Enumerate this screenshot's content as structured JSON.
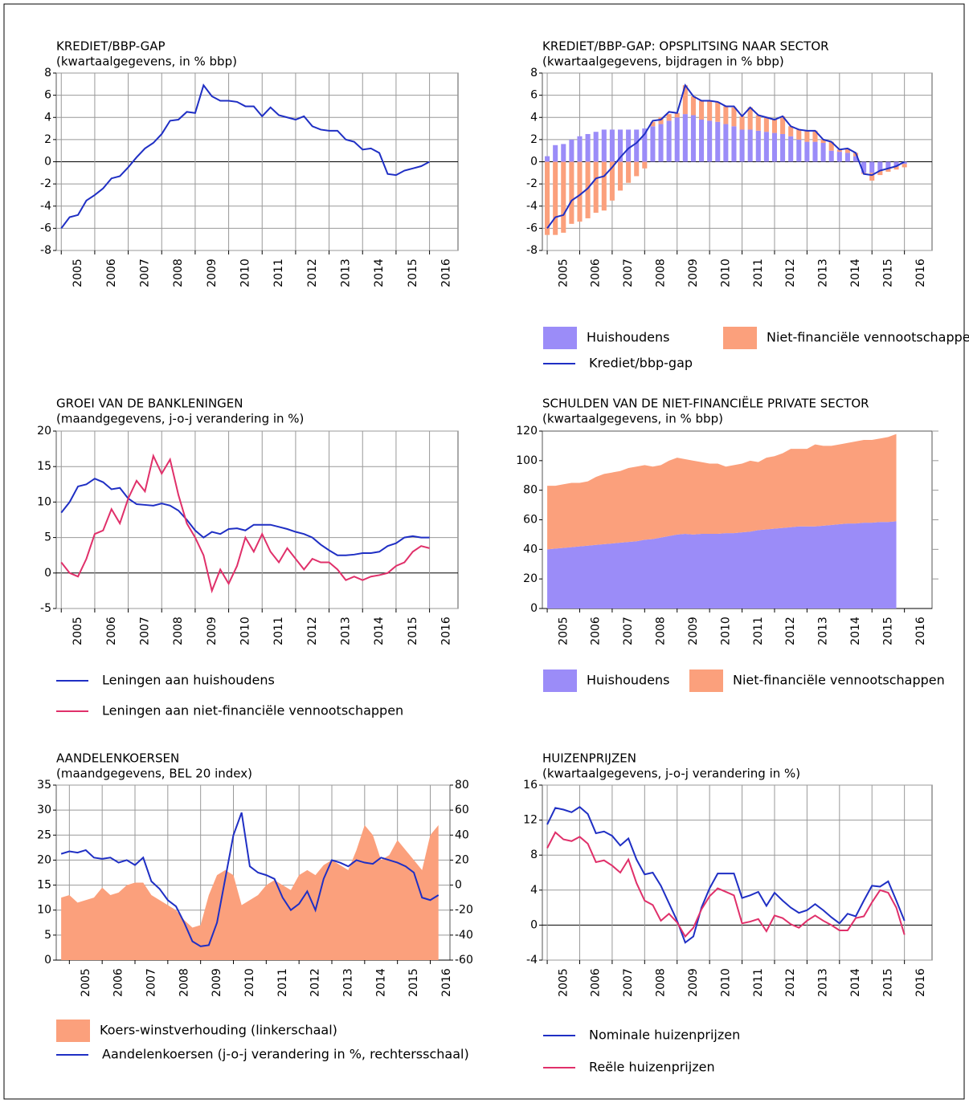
{
  "chart_data": [
    {
      "type": "line",
      "title": "KREDIET/BBP-GAP",
      "subtitle": "(kwartaalgegevens, in % bbp)",
      "grid": true,
      "color": "#1f2fc4",
      "xlim": [
        2004.85,
        2016.85
      ],
      "xticks": [
        2005,
        2006,
        2007,
        2008,
        2009,
        2010,
        2011,
        2012,
        2013,
        2014,
        2015,
        2016
      ],
      "ylim": [
        -8,
        8
      ],
      "yticks": [
        -8,
        -6,
        -4,
        -2,
        0,
        2,
        4,
        6,
        8
      ],
      "x": [
        2005,
        2005.25,
        2005.5,
        2005.75,
        2006,
        2006.25,
        2006.5,
        2006.75,
        2007,
        2007.25,
        2007.5,
        2007.75,
        2008,
        2008.25,
        2008.5,
        2008.75,
        2009,
        2009.25,
        2009.5,
        2009.75,
        2010,
        2010.25,
        2010.5,
        2010.75,
        2011,
        2011.25,
        2011.5,
        2011.75,
        2012,
        2012.25,
        2012.5,
        2012.75,
        2013,
        2013.25,
        2013.5,
        2013.75,
        2014,
        2014.25,
        2014.5,
        2014.75,
        2015,
        2015.25,
        2015.5,
        2015.75,
        2016
      ],
      "values": [
        -6,
        -5,
        -4.8,
        -3.5,
        -3,
        -2.4,
        -1.5,
        -1.3,
        -0.5,
        0.4,
        1.2,
        1.7,
        2.5,
        3.7,
        3.8,
        4.5,
        4.4,
        6.9,
        5.9,
        5.5,
        5.5,
        5.4,
        5,
        5,
        4.1,
        4.9,
        4.2,
        4,
        3.8,
        4.1,
        3.2,
        2.9,
        2.8,
        2.8,
        2,
        1.8,
        1.1,
        1.2,
        0.8,
        -1.1,
        -1.2,
        -0.8,
        -0.6,
        -0.4,
        0
      ]
    },
    {
      "type": "bar",
      "title": "KREDIET/BBP-GAP: OPSPLITSING NAAR SECTOR",
      "subtitle": "(kwartaalgegevens, bijdragen in % bbp)",
      "grid": true,
      "stacked": true,
      "xlim": [
        2004.85,
        2016.85
      ],
      "xticks": [
        2005,
        2006,
        2007,
        2008,
        2009,
        2010,
        2011,
        2012,
        2013,
        2014,
        2015,
        2016
      ],
      "ylim": [
        -8,
        8
      ],
      "yticks": [
        -8,
        -6,
        -4,
        -2,
        0,
        2,
        4,
        6,
        8
      ],
      "x": [
        2005,
        2005.25,
        2005.5,
        2005.75,
        2006,
        2006.25,
        2006.5,
        2006.75,
        2007,
        2007.25,
        2007.5,
        2007.75,
        2008,
        2008.25,
        2008.5,
        2008.75,
        2009,
        2009.25,
        2009.5,
        2009.75,
        2010,
        2010.25,
        2010.5,
        2010.75,
        2011,
        2011.25,
        2011.5,
        2011.75,
        2012,
        2012.25,
        2012.5,
        2012.75,
        2013,
        2013.25,
        2013.5,
        2013.75,
        2014,
        2014.25,
        2014.5,
        2014.75,
        2015,
        2015.25,
        2015.5,
        2015.75,
        2016
      ],
      "series": [
        {
          "name": "Huishoudens",
          "type": "bar",
          "color": "#9b8cf8",
          "values": [
            0.5,
            1.5,
            1.6,
            2,
            2.3,
            2.5,
            2.7,
            2.9,
            2.9,
            2.9,
            2.9,
            2.9,
            3,
            3.2,
            3.4,
            3.7,
            4,
            4.3,
            4.2,
            3.8,
            3.7,
            3.6,
            3.4,
            3.2,
            2.9,
            2.9,
            2.8,
            2.7,
            2.6,
            2.5,
            2.3,
            2,
            1.8,
            1.8,
            1.7,
            1,
            0.9,
            0.8,
            0.5,
            -1,
            -1,
            -0.8,
            -0.6,
            -0.4,
            -0.2
          ]
        },
        {
          "name": "Niet-financiële vennootschappen",
          "type": "bar",
          "color": "#fba07c",
          "values": [
            -6.6,
            -6.6,
            -6.4,
            -5.6,
            -5.4,
            -5.1,
            -4.6,
            -4.4,
            -3.5,
            -2.6,
            -1.9,
            -1.3,
            -0.6,
            0.4,
            0.6,
            0.6,
            0.4,
            2.6,
            1.7,
            1.7,
            1.8,
            1.8,
            1.6,
            1.7,
            1.2,
            2,
            1.4,
            1.3,
            1.2,
            1.6,
            0.9,
            0.9,
            1,
            1,
            0.3,
            0.8,
            0.2,
            0.4,
            0.3,
            -0.1,
            -0.7,
            -0.4,
            -0.3,
            -0.3,
            -0.3
          ]
        },
        {
          "name": "Krediet/bbp-gap",
          "type": "line",
          "color": "#1f2fc4",
          "values": [
            -6,
            -5,
            -4.8,
            -3.5,
            -3,
            -2.4,
            -1.5,
            -1.3,
            -0.5,
            0.4,
            1.2,
            1.7,
            2.5,
            3.7,
            3.8,
            4.5,
            4.4,
            6.9,
            5.9,
            5.5,
            5.5,
            5.4,
            5,
            5,
            4.1,
            4.9,
            4.2,
            4,
            3.8,
            4.1,
            3.2,
            2.9,
            2.8,
            2.8,
            2,
            1.8,
            1.1,
            1.2,
            0.8,
            -1.1,
            -1.2,
            -0.8,
            -0.6,
            -0.4,
            0
          ]
        }
      ]
    },
    {
      "type": "line",
      "title": "GROEI VAN DE BANKLENINGEN",
      "subtitle": "(maandgegevens, j-o-j verandering in %)",
      "grid": true,
      "xlim": [
        2004.85,
        2016.85
      ],
      "xticks": [
        2005,
        2006,
        2007,
        2008,
        2009,
        2010,
        2011,
        2012,
        2013,
        2014,
        2015,
        2016
      ],
      "ylim": [
        -5,
        20
      ],
      "yticks": [
        -5,
        0,
        5,
        10,
        15,
        20
      ],
      "x": [
        2005,
        2005.25,
        2005.5,
        2005.75,
        2006,
        2006.25,
        2006.5,
        2006.75,
        2007,
        2007.25,
        2007.5,
        2007.75,
        2008,
        2008.25,
        2008.5,
        2008.75,
        2009,
        2009.25,
        2009.5,
        2009.75,
        2010,
        2010.25,
        2010.5,
        2010.75,
        2011,
        2011.25,
        2011.5,
        2011.75,
        2012,
        2012.25,
        2012.5,
        2012.75,
        2013,
        2013.25,
        2013.5,
        2013.75,
        2014,
        2014.25,
        2014.5,
        2014.75,
        2015,
        2015.25,
        2015.5,
        2015.75,
        2016
      ],
      "series": [
        {
          "name": "Leningen aan huishoudens",
          "color": "#1f2fc4",
          "values": [
            8.5,
            10,
            12.2,
            12.5,
            13.3,
            12.8,
            11.8,
            12,
            10.5,
            9.7,
            9.6,
            9.5,
            9.8,
            9.5,
            8.8,
            7.5,
            6,
            5,
            5.8,
            5.5,
            6.2,
            6.3,
            6,
            6.8,
            6.8,
            6.8,
            6.5,
            6.2,
            5.8,
            5.5,
            5,
            4,
            3.2,
            2.5,
            2.5,
            2.6,
            2.8,
            2.8,
            3,
            3.8,
            4.2,
            5,
            5.2,
            5,
            5
          ]
        },
        {
          "name": "Leningen aan niet-financiële vennootschappen",
          "color": "#e0306a",
          "values": [
            1.5,
            0,
            -0.5,
            2,
            5.5,
            6,
            9,
            7,
            10.5,
            13,
            11.5,
            16.5,
            14,
            16,
            11,
            7,
            5,
            2.5,
            -2.5,
            0.5,
            -1.5,
            1,
            5,
            3,
            5.5,
            3,
            1.5,
            3.5,
            2,
            0.5,
            2,
            1.5,
            1.5,
            0.5,
            -1,
            -0.5,
            -1,
            -0.5,
            -0.3,
            0,
            1,
            1.5,
            3,
            3.8,
            3.5
          ]
        }
      ]
    },
    {
      "type": "area",
      "title": "SCHULDEN VAN DE NIET-FINANCIËLE PRIVATE SECTOR",
      "subtitle": "(kwartaalgegevens, in % bbp)",
      "grid": false,
      "stacked": true,
      "xlim": [
        2004.85,
        2016.85
      ],
      "xticks": [
        2005,
        2006,
        2007,
        2008,
        2009,
        2010,
        2011,
        2012,
        2013,
        2014,
        2015,
        2016
      ],
      "ylim": [
        0,
        120
      ],
      "yticks": [
        0,
        20,
        40,
        60,
        80,
        100,
        120
      ],
      "x": [
        2005,
        2005.25,
        2005.5,
        2005.75,
        2006,
        2006.25,
        2006.5,
        2006.75,
        2007,
        2007.25,
        2007.5,
        2007.75,
        2008,
        2008.25,
        2008.5,
        2008.75,
        2009,
        2009.25,
        2009.5,
        2009.75,
        2010,
        2010.25,
        2010.5,
        2010.75,
        2011,
        2011.25,
        2011.5,
        2011.75,
        2012,
        2012.25,
        2012.5,
        2012.75,
        2013,
        2013.25,
        2013.5,
        2013.75,
        2014,
        2014.25,
        2014.5,
        2014.75,
        2015,
        2015.25,
        2015.5,
        2015.75
      ],
      "series": [
        {
          "name": "Huishoudens",
          "color": "#9b8cf8",
          "values": [
            40,
            40.5,
            41,
            41.5,
            42,
            42.5,
            43,
            43.5,
            44,
            44.5,
            45,
            45.5,
            46.5,
            47,
            48,
            49,
            50,
            50.5,
            50,
            50.5,
            50.5,
            50.5,
            51,
            51,
            51.5,
            52,
            53,
            53.5,
            54,
            54.5,
            55,
            55.5,
            55.5,
            55.5,
            56,
            56.5,
            57,
            57.5,
            57.5,
            58,
            58,
            58.5,
            58.5,
            59
          ]
        },
        {
          "name": "Niet-financiële vennootschappen",
          "color": "#fba07c",
          "values": [
            43,
            42.5,
            43,
            43.5,
            43,
            43.5,
            46,
            47.5,
            48,
            48.5,
            50,
            50.5,
            50.5,
            49,
            49,
            51,
            52,
            50.5,
            50,
            48.5,
            47.5,
            47.5,
            45,
            46,
            46.5,
            48,
            46,
            48.5,
            49,
            50.5,
            53,
            52.5,
            52.5,
            55.5,
            54,
            53.5,
            54,
            54.5,
            55.5,
            56,
            56,
            56.5,
            57.5,
            59
          ]
        }
      ]
    },
    {
      "type": "area",
      "title": "AANDELENKOERSEN",
      "subtitle": "(maandgegevens, BEL 20 index)",
      "grid": true,
      "xlim": [
        2004.6,
        2016.6
      ],
      "xticks": [
        2005,
        2006,
        2007,
        2008,
        2009,
        2010,
        2011,
        2012,
        2013,
        2014,
        2015,
        2016
      ],
      "ylim": [
        0,
        35
      ],
      "yticks": [
        0,
        5,
        10,
        15,
        20,
        25,
        30,
        35
      ],
      "y2lim": [
        -60,
        80
      ],
      "y2ticks": [
        -60,
        -40,
        -20,
        0,
        20,
        40,
        60,
        80
      ],
      "x": [
        2004.75,
        2005,
        2005.25,
        2005.5,
        2005.75,
        2006,
        2006.25,
        2006.5,
        2006.75,
        2007,
        2007.25,
        2007.5,
        2007.75,
        2008,
        2008.25,
        2008.5,
        2008.75,
        2009,
        2009.25,
        2009.5,
        2009.75,
        2010,
        2010.25,
        2010.5,
        2010.75,
        2011,
        2011.25,
        2011.5,
        2011.75,
        2012,
        2012.25,
        2012.5,
        2012.75,
        2013,
        2013.25,
        2013.5,
        2013.75,
        2014,
        2014.25,
        2014.5,
        2014.75,
        2015,
        2015.25,
        2015.5,
        2015.75,
        2016,
        2016.25
      ],
      "series": [
        {
          "name": "Koers-winstverhouding (linkerschaal)",
          "type": "area",
          "color": "#fba07c",
          "values": [
            12.5,
            13,
            11.5,
            12,
            12.5,
            14.5,
            13,
            13.5,
            15,
            15.5,
            15.5,
            13,
            12,
            11,
            10,
            8,
            6.5,
            7,
            13,
            17,
            18,
            17,
            11,
            12,
            13,
            15,
            16,
            15,
            14,
            17,
            18,
            17,
            19,
            20,
            19,
            18,
            22,
            27,
            25,
            20,
            21,
            24,
            22,
            20,
            18,
            25,
            27
          ]
        },
        {
          "name": "Aandelenkoersen (j-o-j verandering in %, rechtersschaal)",
          "type": "line",
          "axis": "y2",
          "color": "#1f2fc4",
          "values": [
            25,
            27,
            26,
            28,
            22,
            21,
            22,
            18,
            20,
            16,
            22,
            3,
            -3,
            -12,
            -17,
            -30,
            -45,
            -49,
            -48,
            -30,
            5,
            40,
            58,
            15,
            10,
            8,
            5,
            -10,
            -20,
            -15,
            -5,
            -20,
            5,
            20,
            18,
            15,
            20,
            18,
            17,
            22,
            20,
            18,
            15,
            10,
            -10,
            -12,
            -8
          ]
        }
      ]
    },
    {
      "type": "line",
      "title": "HUIZENPRIJZEN",
      "subtitle": "(kwartaalgegevens, j-o-j verandering in %)",
      "grid": true,
      "xlim": [
        2004.85,
        2016.85
      ],
      "xticks": [
        2005,
        2006,
        2007,
        2008,
        2009,
        2010,
        2011,
        2012,
        2013,
        2014,
        2015,
        2016
      ],
      "ylim": [
        -4,
        16
      ],
      "yticks": [
        -4,
        0,
        4,
        8,
        12,
        16
      ],
      "x": [
        2005,
        2005.25,
        2005.5,
        2005.75,
        2006,
        2006.25,
        2006.5,
        2006.75,
        2007,
        2007.25,
        2007.5,
        2007.75,
        2008,
        2008.25,
        2008.5,
        2008.75,
        2009,
        2009.25,
        2009.5,
        2009.75,
        2010,
        2010.25,
        2010.5,
        2010.75,
        2011,
        2011.25,
        2011.5,
        2011.75,
        2012,
        2012.25,
        2012.5,
        2012.75,
        2013,
        2013.25,
        2013.5,
        2013.75,
        2014,
        2014.25,
        2014.5,
        2014.75,
        2015,
        2015.25,
        2015.5,
        2015.75,
        2016
      ],
      "series": [
        {
          "name": "Nominale huizenprijzen",
          "color": "#1f2fc4",
          "values": [
            11.5,
            13.4,
            13.2,
            12.9,
            13.5,
            12.7,
            10.5,
            10.7,
            10.2,
            9.1,
            9.9,
            7.5,
            5.8,
            6,
            4.5,
            2.5,
            0.5,
            -2,
            -1.3,
            2,
            4.2,
            5.9,
            5.9,
            5.9,
            3.1,
            3.4,
            3.8,
            2.2,
            3.7,
            2.8,
            2,
            1.4,
            1.7,
            2.4,
            1.7,
            0.9,
            0.2,
            1.3,
            1,
            2.8,
            4.5,
            4.4,
            5,
            2.8,
            0.5
          ]
        },
        {
          "name": "Reële huizenprijzen",
          "color": "#e0306a",
          "values": [
            8.8,
            10.6,
            9.8,
            9.6,
            10.1,
            9.3,
            7.2,
            7.4,
            6.8,
            6,
            7.5,
            4.8,
            2.8,
            2.3,
            0.5,
            1.3,
            0.3,
            -1.3,
            -0.3,
            1.8,
            3.3,
            4.2,
            3.8,
            3.4,
            0.2,
            0.4,
            0.7,
            -0.7,
            1.1,
            0.8,
            0.1,
            -0.3,
            0.5,
            1.1,
            0.5,
            0,
            -0.6,
            -0.6,
            0.8,
            1,
            2.6,
            4,
            3.7,
            2,
            -1.1
          ]
        }
      ]
    }
  ]
}
